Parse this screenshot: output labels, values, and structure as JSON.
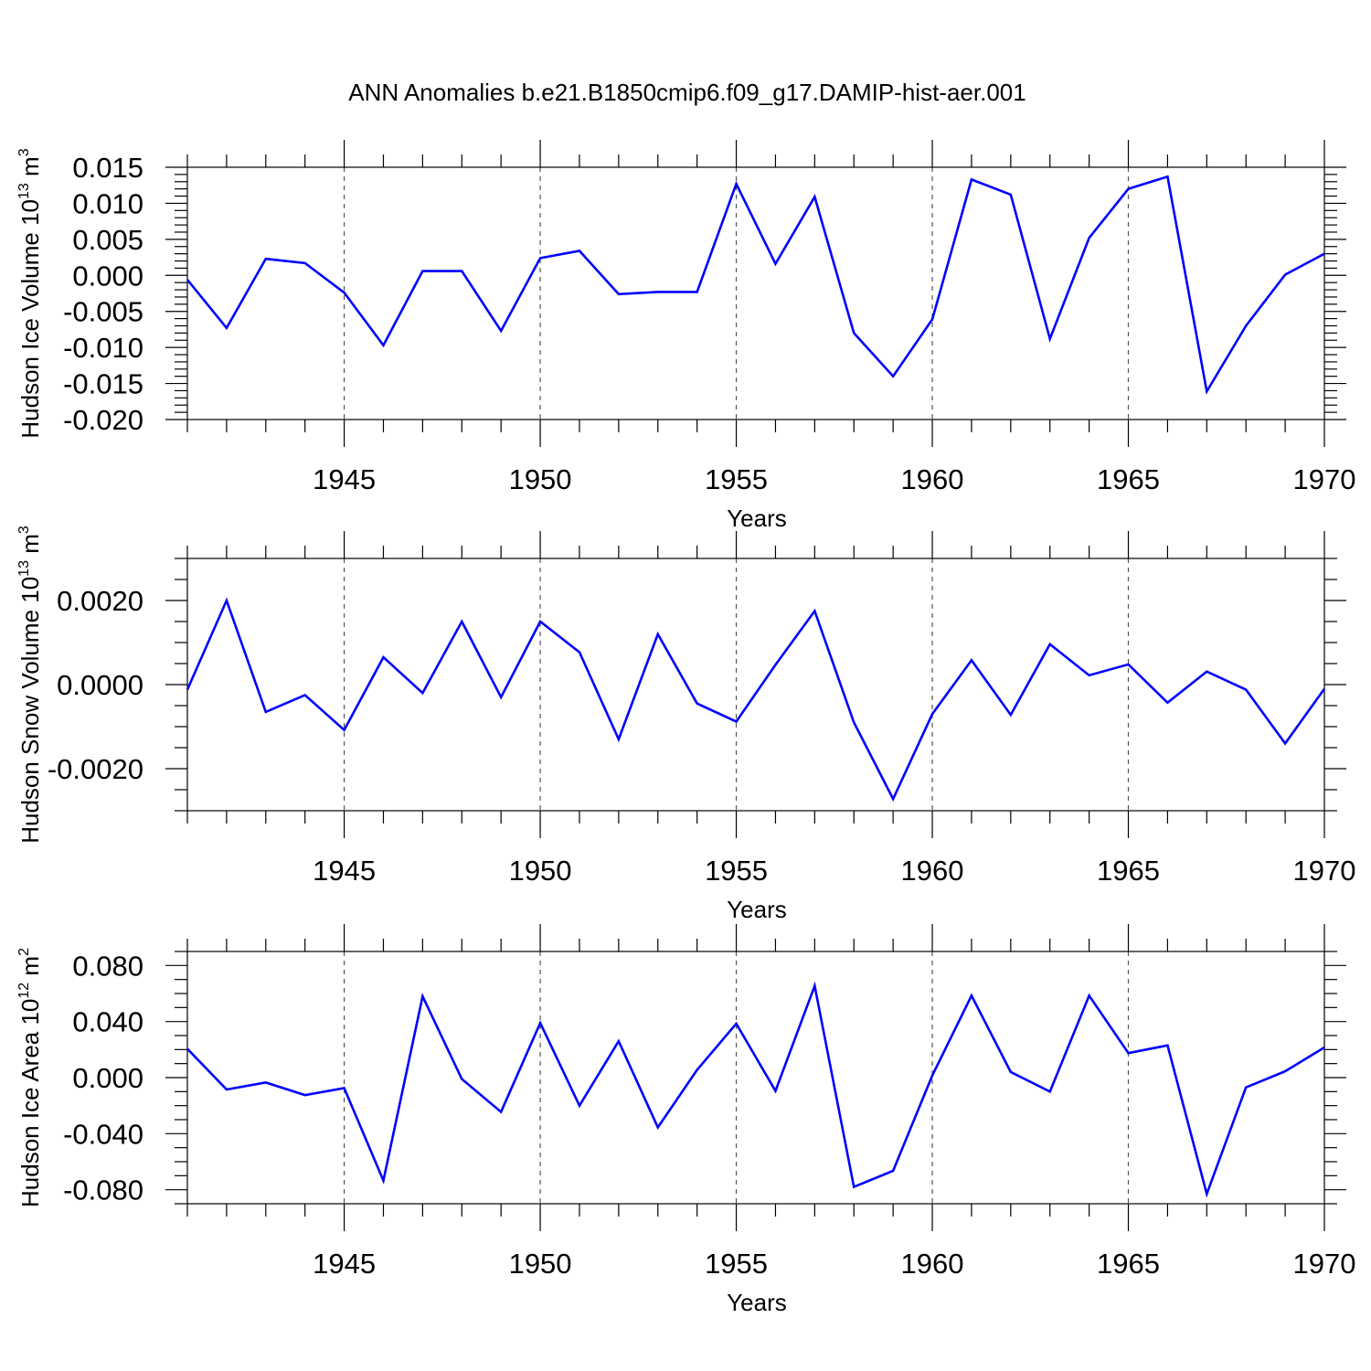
{
  "chart_data": {
    "title": "ANN Anomalies b.e21.B1850cmip6.f09_g17.DAMIP-hist-aer.001",
    "panels": [
      {
        "type": "line",
        "ylabel": "Hudson Ice Volume 10",
        "ylabel_exp": "13",
        "ylabel_unit": " m",
        "ylabel_unit_exp": "3",
        "xlabel": "Years",
        "xlim": [
          1941,
          1970
        ],
        "ylim": [
          -0.02,
          0.015
        ],
        "yticks": [
          -0.02,
          -0.015,
          -0.01,
          -0.005,
          0.0,
          0.005,
          0.01,
          0.015
        ],
        "ytick_labels": [
          "-0.020",
          "-0.015",
          "-0.010",
          "-0.005",
          "0.000",
          "0.005",
          "0.010",
          "0.015"
        ],
        "yminor_step": 0.001,
        "x": [
          1941,
          1942,
          1943,
          1944,
          1945,
          1946,
          1947,
          1948,
          1949,
          1950,
          1951,
          1952,
          1953,
          1954,
          1955,
          1956,
          1957,
          1958,
          1959,
          1960,
          1961,
          1962,
          1963,
          1964,
          1965,
          1966,
          1967,
          1968,
          1969,
          1970
        ],
        "series": [
          {
            "name": "Hudson Ice Volume",
            "color": "#0000ff",
            "values": [
              -0.0006,
              -0.0073,
              0.0023,
              0.0017,
              -0.0024,
              -0.0097,
              0.0006,
              0.0006,
              -0.0077,
              0.0024,
              0.0034,
              -0.0026,
              -0.0023,
              -0.0023,
              0.0127,
              0.0016,
              0.0109,
              -0.008,
              -0.014,
              -0.0061,
              0.0133,
              0.0112,
              -0.0088,
              0.0052,
              0.012,
              0.0137,
              -0.0161,
              -0.007,
              0.0001,
              0.003
            ]
          }
        ]
      },
      {
        "type": "line",
        "ylabel": "Hudson Snow Volume 10",
        "ylabel_exp": "13",
        "ylabel_unit": " m",
        "ylabel_unit_exp": "3",
        "xlabel": "Years",
        "xlim": [
          1941,
          1970
        ],
        "ylim": [
          -0.003,
          0.003
        ],
        "yticks": [
          -0.002,
          0.0,
          0.002
        ],
        "ytick_labels": [
          "-0.0020",
          "0.0000",
          "0.0020"
        ],
        "yminor_step": 0.0005,
        "x": [
          1941,
          1942,
          1943,
          1944,
          1945,
          1946,
          1947,
          1948,
          1949,
          1950,
          1951,
          1952,
          1953,
          1954,
          1955,
          1956,
          1957,
          1958,
          1959,
          1960,
          1961,
          1962,
          1963,
          1964,
          1965,
          1966,
          1967,
          1968,
          1969,
          1970
        ],
        "series": [
          {
            "name": "Hudson Snow Volume",
            "color": "#0000ff",
            "values": [
              -0.00012,
              0.002,
              -0.00065,
              -0.00025,
              -0.00108,
              0.00065,
              -0.0002,
              0.0015,
              -0.0003,
              0.0015,
              0.00077,
              -0.0013,
              0.0012,
              -0.00045,
              -0.00088,
              0.00047,
              0.00175,
              -0.0009,
              -0.00272,
              -0.0007,
              0.00058,
              -0.00072,
              0.00096,
              0.00022,
              0.00048,
              -0.00043,
              0.00031,
              -0.00012,
              -0.0014,
              -0.0001
            ]
          }
        ]
      },
      {
        "type": "line",
        "ylabel": "Hudson Ice Area 10",
        "ylabel_exp": "12",
        "ylabel_unit": " m",
        "ylabel_unit_exp": "2",
        "xlabel": "Years",
        "xlim": [
          1941,
          1970
        ],
        "ylim": [
          -0.09,
          0.09
        ],
        "yticks": [
          -0.08,
          -0.04,
          0.0,
          0.04,
          0.08
        ],
        "ytick_labels": [
          "-0.080",
          "-0.040",
          "0.000",
          "0.040",
          "0.080"
        ],
        "yminor_step": 0.01,
        "x": [
          1941,
          1942,
          1943,
          1944,
          1945,
          1946,
          1947,
          1948,
          1949,
          1950,
          1951,
          1952,
          1953,
          1954,
          1955,
          1956,
          1957,
          1958,
          1959,
          1960,
          1961,
          1962,
          1963,
          1964,
          1965,
          1966,
          1967,
          1968,
          1969,
          1970
        ],
        "series": [
          {
            "name": "Hudson Ice Area",
            "color": "#0000ff",
            "values": [
              0.0205,
              -0.0085,
              -0.0035,
              -0.0125,
              -0.0075,
              -0.0735,
              0.058,
              -0.001,
              -0.0245,
              0.039,
              -0.02,
              0.026,
              -0.0355,
              0.0055,
              0.0385,
              -0.0095,
              0.0655,
              -0.078,
              -0.0665,
              0.0015,
              0.0585,
              0.004,
              -0.01,
              0.0585,
              0.0175,
              0.023,
              -0.083,
              -0.007,
              0.0045,
              0.0215
            ]
          }
        ]
      }
    ],
    "xticks": [
      1945,
      1950,
      1955,
      1960,
      1965,
      1970
    ],
    "xtick_labels": [
      "1945",
      "1950",
      "1955",
      "1960",
      "1965",
      "1970"
    ],
    "grid_x": true
  }
}
